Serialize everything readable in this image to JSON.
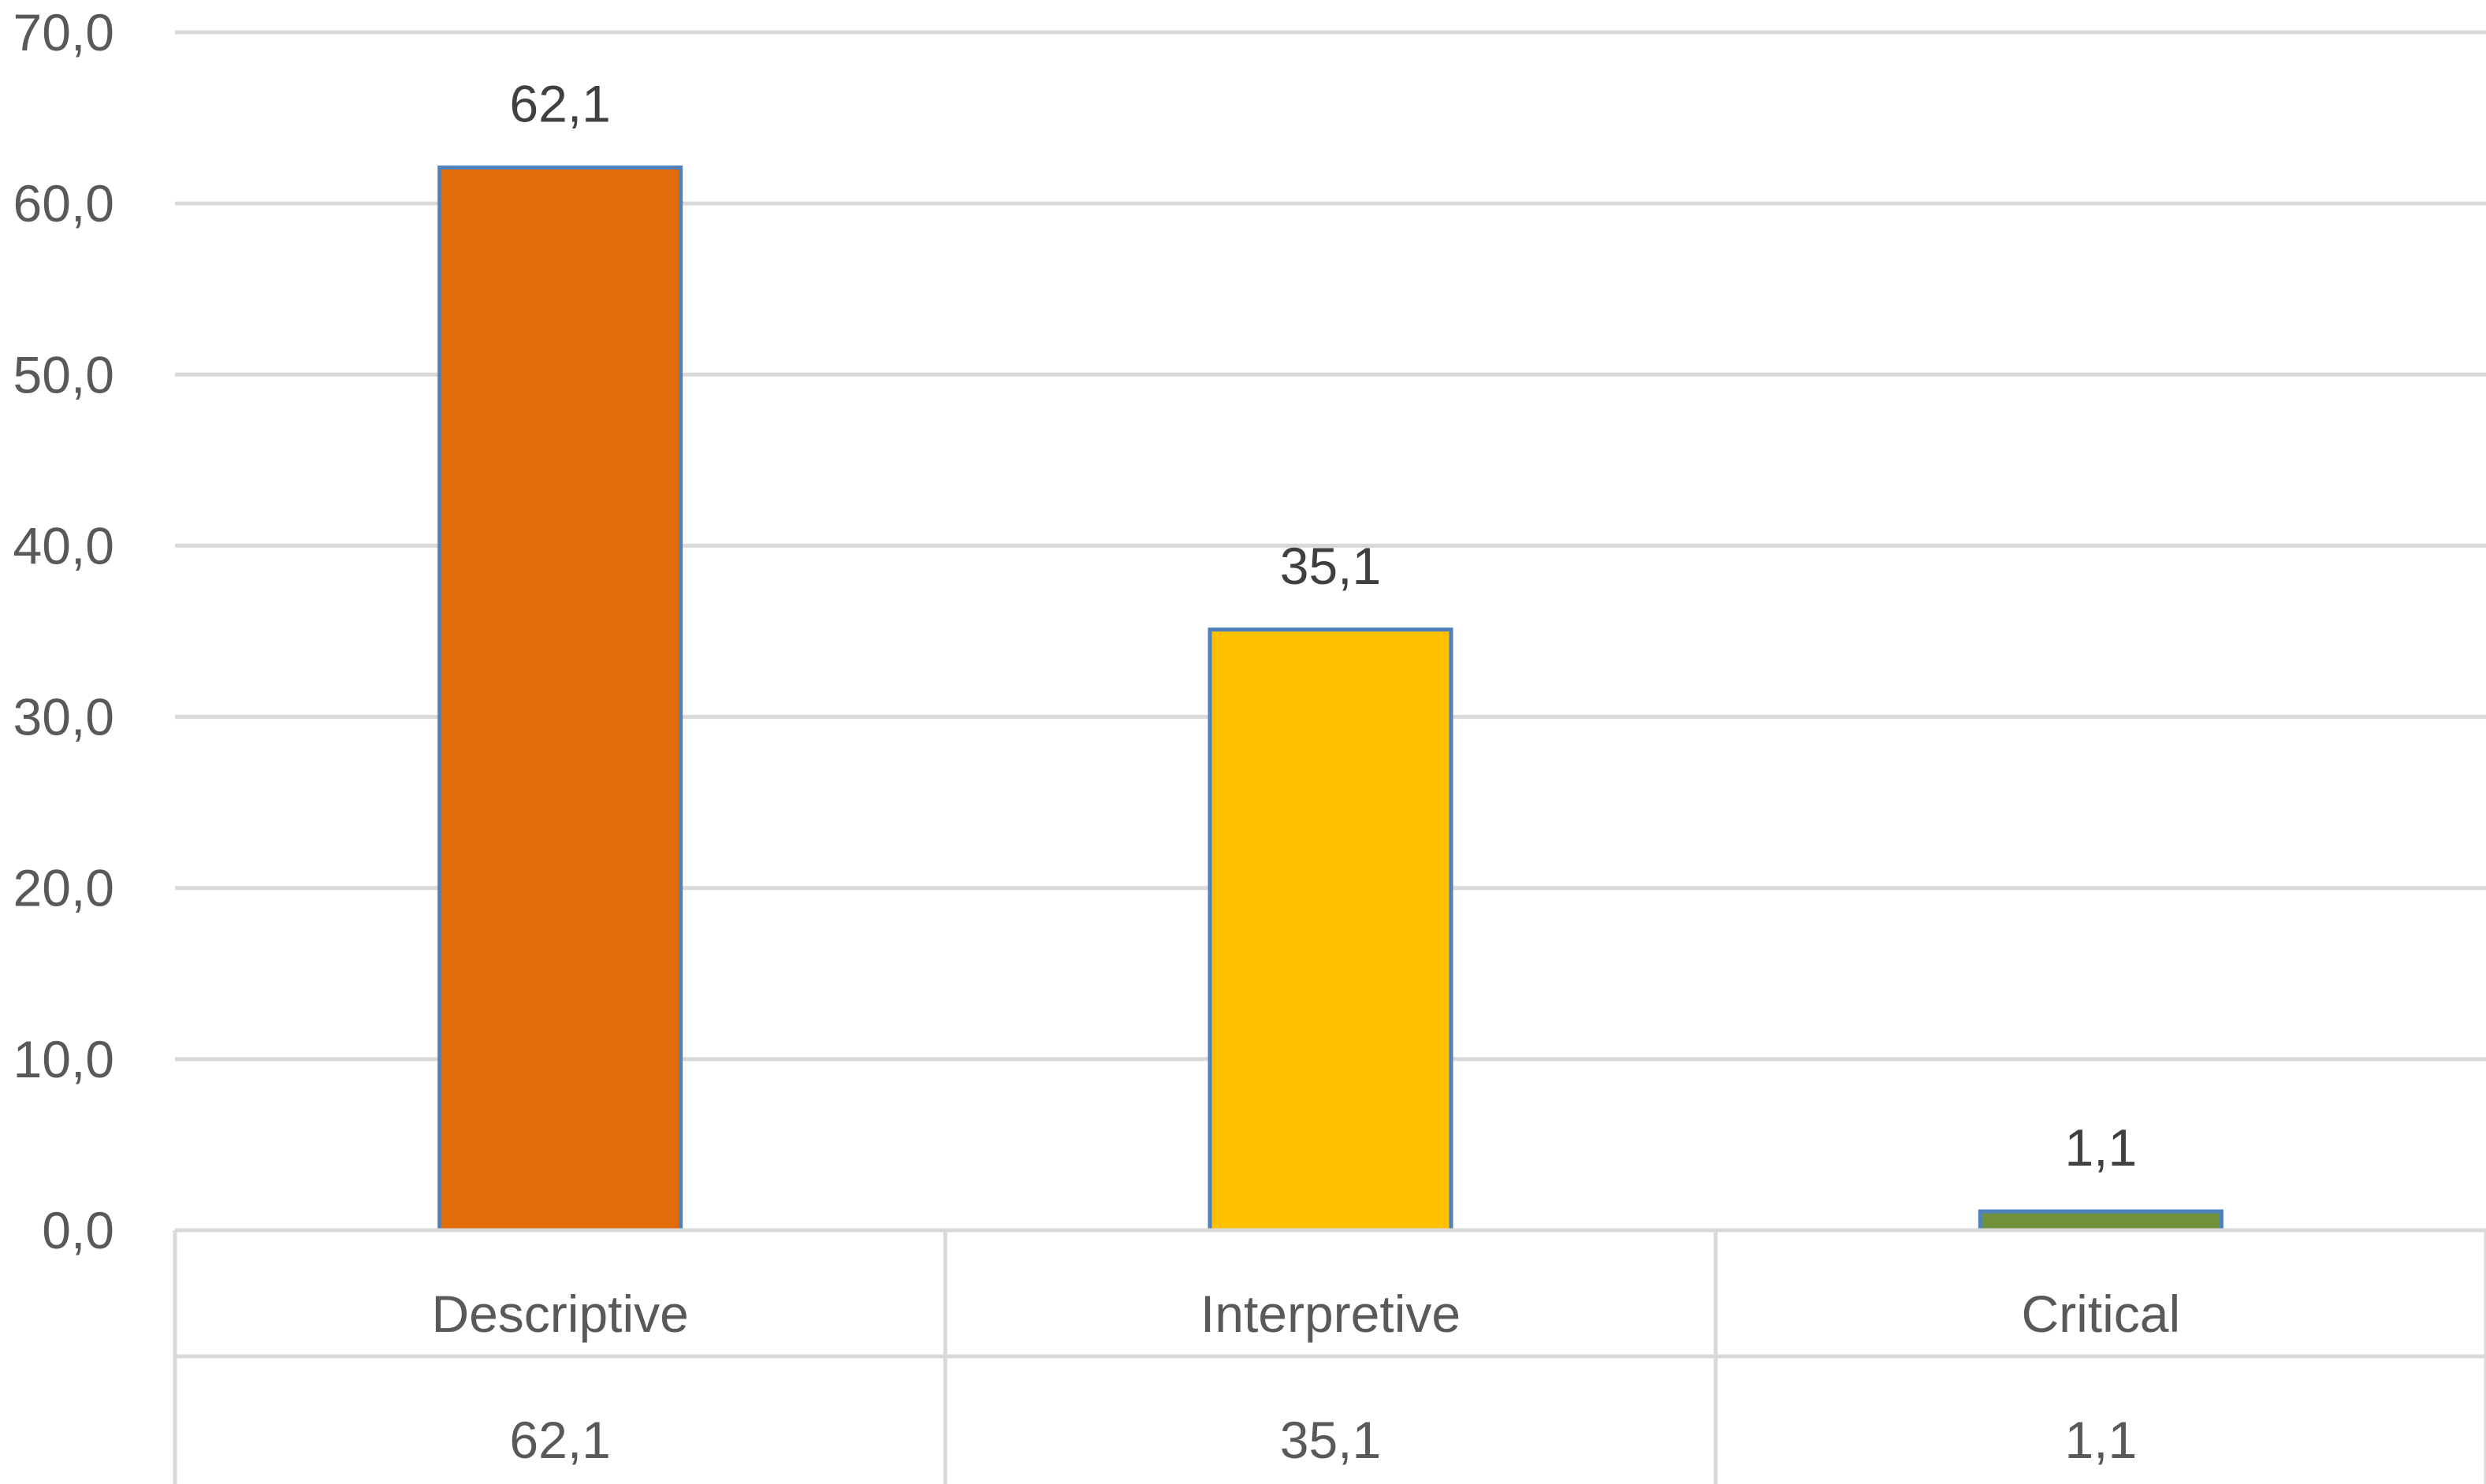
{
  "chart_data": {
    "type": "bar",
    "title": "",
    "xlabel": "",
    "ylabel": "",
    "categories": [
      "Descriptive",
      "Interpretive",
      "Critical"
    ],
    "values": [
      62.1,
      35.1,
      1.1
    ],
    "value_labels": [
      "62,1",
      "35,1",
      "1,1"
    ],
    "colors": [
      "#E36C0A",
      "#FFC000",
      "#70913A"
    ],
    "bar_border_color": "#4F81BD",
    "ylim": [
      0,
      70
    ],
    "yticks": [
      0,
      10,
      20,
      30,
      40,
      50,
      60,
      70
    ],
    "ytick_labels": [
      "0,0",
      "10,0",
      "20,0",
      "30,0",
      "40,0",
      "50,0",
      "60,0",
      "70,0"
    ],
    "grid": true,
    "data_table": {
      "rows": [
        [
          "62,1",
          "35,1",
          "1,1"
        ]
      ]
    }
  }
}
